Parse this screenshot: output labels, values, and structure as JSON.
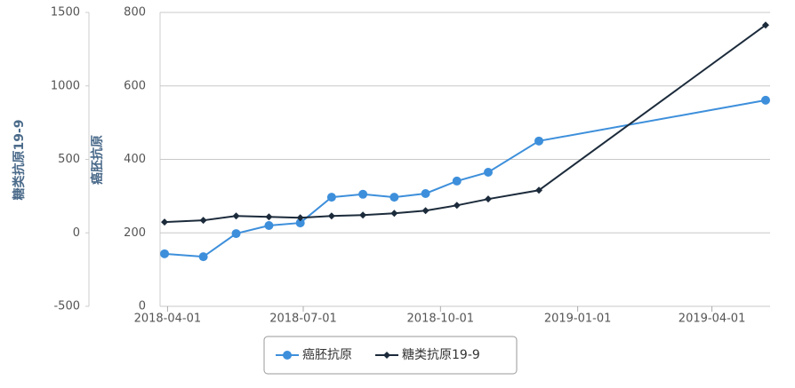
{
  "chart_data": {
    "type": "line",
    "y_label": "癌胚抗原",
    "y2_label": "糖类抗原19-9",
    "x": [
      "2018-03-30",
      "2018-04-25",
      "2018-05-17",
      "2018-06-08",
      "2018-06-29",
      "2018-07-20",
      "2018-08-10",
      "2018-08-31",
      "2018-09-21",
      "2018-10-12",
      "2018-11-02",
      "2018-12-06",
      "2019-05-07"
    ],
    "series": [
      {
        "name": "癌胚抗原",
        "color": "#3d8fdb",
        "values": [
          143,
          135,
          198,
          220,
          227,
          297,
          305,
          297,
          307,
          341,
          365,
          450,
          561
        ]
      },
      {
        "name": "糖类抗原19-9",
        "color": "#1c2b3b",
        "axis": "y2",
        "values": [
          73,
          85,
          115,
          109,
          103,
          115,
          121,
          133,
          151,
          187,
          230,
          290,
          1414
        ]
      }
    ],
    "xlim": [
      "2018-03-27",
      "2019-05-10"
    ],
    "xticks": [
      "2018-04-01",
      "2018-07-01",
      "2018-10-01",
      "2019-01-01",
      "2019-04-01"
    ],
    "ylim": [
      0,
      800
    ],
    "yticks": [
      0,
      200,
      400,
      600,
      800
    ],
    "y2lim": [
      -500,
      1500
    ],
    "y2ticks": [
      -500,
      0,
      500,
      1000,
      1500
    ],
    "grid": true,
    "legend": "bottom"
  }
}
